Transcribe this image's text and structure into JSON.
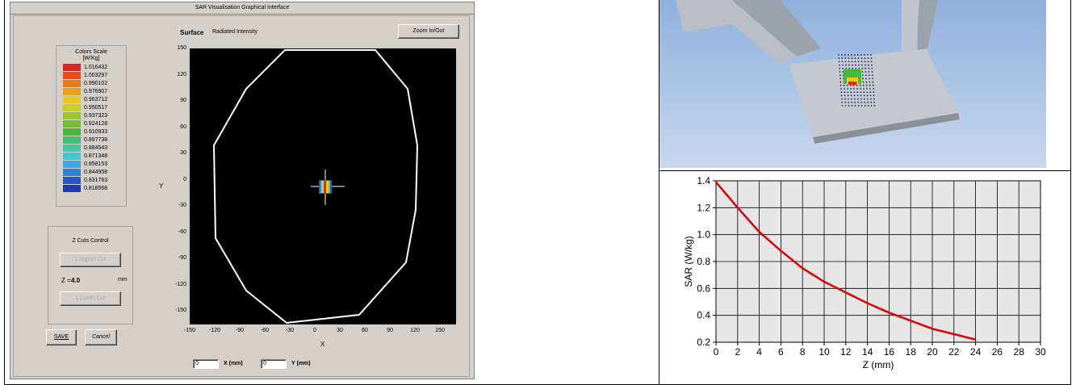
{
  "sar_window": {
    "title": "SAR Visualisation Graphical Interface",
    "surface_label": "Surface",
    "surface_value": "Radiated Intensity",
    "zoom_button": "Zoom In/Out",
    "colorscale": {
      "title": "Colors Scale",
      "unit": "[W/Kg]",
      "entries": [
        {
          "label": "1.016432",
          "color": "#e82020"
        },
        {
          "label": "1.003297",
          "color": "#f04a10"
        },
        {
          "label": "0.990102",
          "color": "#f07810"
        },
        {
          "label": "0.976907",
          "color": "#f0a010"
        },
        {
          "label": "0.963712",
          "color": "#f0c810"
        },
        {
          "label": "0.950517",
          "color": "#c8d020"
        },
        {
          "label": "0.937323",
          "color": "#98c828"
        },
        {
          "label": "0.924128",
          "color": "#70c030"
        },
        {
          "label": "0.910933",
          "color": "#48b838"
        },
        {
          "label": "0.897738",
          "color": "#40c070"
        },
        {
          "label": "0.884543",
          "color": "#40c8a8"
        },
        {
          "label": "0.871348",
          "color": "#40c8d8"
        },
        {
          "label": "0.858153",
          "color": "#38a8e0"
        },
        {
          "label": "0.844958",
          "color": "#3080d8"
        },
        {
          "label": "0.831763",
          "color": "#2858c8"
        },
        {
          "label": "0.818568",
          "color": "#2038b0"
        }
      ]
    },
    "zcuts": {
      "title": "Z Cuts Control",
      "up_button": "1 Higher Cut",
      "z_label": "Z =",
      "z_value": "4.0",
      "z_unit": "mm",
      "down_button": "1 Lower Cut"
    },
    "save_button": "SAVE",
    "cancel_button": "Cancel",
    "plot": {
      "y_ticks": [
        "150",
        "120",
        "90",
        "60",
        "30",
        "0",
        "-30",
        "-60",
        "-90",
        "-120",
        "-150"
      ],
      "x_ticks": [
        "-150",
        "-120",
        "-90",
        "-60",
        "-30",
        "0",
        "30",
        "60",
        "90",
        "120",
        "150"
      ],
      "y_axis_label": "Y",
      "x_axis_label": "X"
    },
    "x_input_value": "0",
    "x_coord_label": "X (mm)",
    "y_input_value": "0",
    "y_coord_label": "Y (mm)"
  },
  "chart_data": {
    "type": "line",
    "title": "",
    "xlabel": "Z (mm)",
    "ylabel": "SAR (W/kg)",
    "xlim": [
      0,
      30
    ],
    "ylim": [
      0.2,
      1.4
    ],
    "x_ticks": [
      0,
      2,
      4,
      6,
      8,
      10,
      12,
      14,
      16,
      18,
      20,
      22,
      24,
      26,
      28,
      30
    ],
    "y_ticks": [
      0.2,
      0.4,
      0.6,
      0.8,
      1.0,
      1.2,
      1.4
    ],
    "y_tick_labels": [
      "0.2",
      "0.4",
      "0.6",
      "0.8",
      "1.0",
      "1.2",
      "1.4"
    ],
    "grid": true,
    "series": [
      {
        "color": "#e00000",
        "x": [
          0,
          2,
          4,
          6,
          8,
          10,
          12,
          14,
          16,
          18,
          20,
          22,
          24
        ],
        "y": [
          1.39,
          1.2,
          1.02,
          0.88,
          0.75,
          0.65,
          0.57,
          0.49,
          0.42,
          0.36,
          0.3,
          0.26,
          0.22
        ]
      }
    ]
  }
}
